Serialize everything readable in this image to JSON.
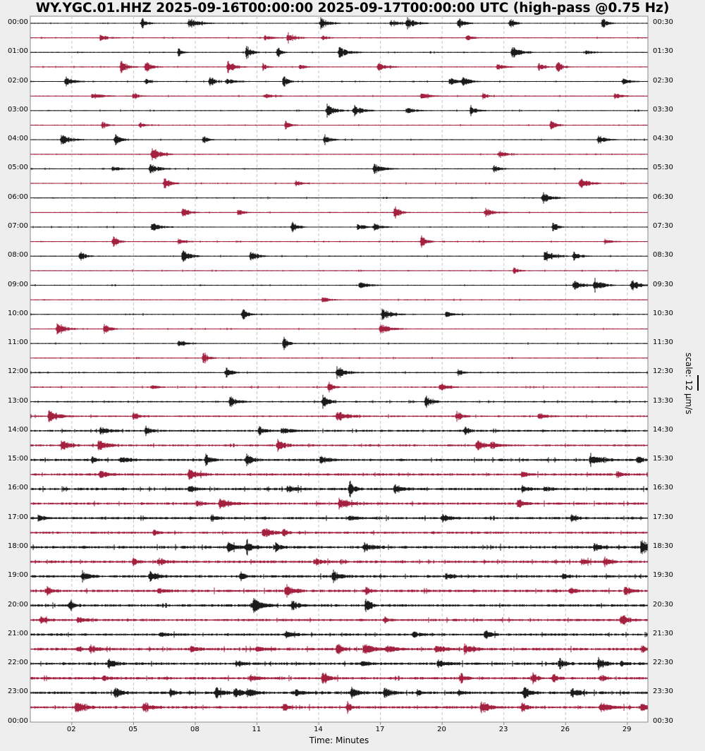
{
  "chart_data": {
    "type": "helicorder",
    "title": "WY.YGC.01.HHZ 2025-09-16T00:00:00 2025-09-17T00:00:00 UTC (high-pass @0.75 Hz)",
    "xlabel": "Time: Minutes",
    "xlim": [
      0,
      30
    ],
    "xticks": [
      2,
      5,
      8,
      11,
      14,
      17,
      20,
      23,
      26,
      29
    ],
    "xtick_labels": [
      "02",
      "05",
      "08",
      "11",
      "14",
      "17",
      "20",
      "23",
      "26",
      "29"
    ],
    "left_labels": [
      "00:00",
      "01:00",
      "02:00",
      "03:00",
      "04:00",
      "05:00",
      "06:00",
      "07:00",
      "08:00",
      "09:00",
      "10:00",
      "11:00",
      "12:00",
      "13:00",
      "14:00",
      "15:00",
      "16:00",
      "17:00",
      "18:00",
      "19:00",
      "20:00",
      "21:00",
      "22:00",
      "23:00"
    ],
    "left_bottom_label": "00:00",
    "right_labels": [
      "00:30",
      "01:30",
      "02:30",
      "03:30",
      "04:30",
      "05:30",
      "06:30",
      "07:30",
      "08:30",
      "09:30",
      "10:30",
      "11:30",
      "12:30",
      "13:30",
      "14:30",
      "15:30",
      "16:30",
      "17:30",
      "18:30",
      "19:30",
      "20:30",
      "21:30",
      "22:30",
      "23:30"
    ],
    "right_bottom_label": "00:30",
    "scale_label": "scale: 12 µm/s",
    "grid": "vertical-dashed",
    "colors": {
      "even_rows": "#1a1a1a",
      "odd_rows": "#a3213f",
      "background": "#eeeeee",
      "plot_bg": "#ffffff"
    },
    "trace_count": 48,
    "noise_levels": [
      0.6,
      0.6,
      0.6,
      0.6,
      0.6,
      0.6,
      0.6,
      0.6,
      0.6,
      0.6,
      0.6,
      0.6,
      0.6,
      0.6,
      0.6,
      0.6,
      0.6,
      0.6,
      0.6,
      0.6,
      0.6,
      0.6,
      0.6,
      0.6,
      0.8,
      0.8,
      0.9,
      1.0,
      1.2,
      1.2,
      1.4,
      1.4,
      1.5,
      1.4,
      1.4,
      1.3,
      1.6,
      1.5,
      1.5,
      1.5,
      1.5,
      1.4,
      1.4,
      1.6,
      1.5,
      1.5,
      1.6,
      1.5
    ],
    "events_minutes": [
      [
        5.4,
        7.7,
        14.1,
        17.5,
        18.3,
        20.8,
        23.3,
        27.8
      ],
      [
        3.4,
        11.4,
        12.5,
        14.2,
        21.2
      ],
      [
        7.2,
        10.5,
        12.0,
        15.0,
        23.4,
        27.0
      ],
      [
        4.4,
        5.6,
        9.6,
        11.3,
        13.1,
        16.9,
        22.7,
        24.7,
        25.6
      ],
      [
        1.7,
        5.6,
        8.7,
        9.5,
        12.3,
        20.4,
        21.0,
        28.8
      ],
      [
        3.0,
        5.0,
        11.4,
        19.0,
        22.0,
        28.4
      ],
      [
        14.4,
        15.7,
        18.3,
        21.4
      ],
      [
        3.5,
        5.3,
        12.4,
        25.3
      ],
      [
        1.5,
        4.1,
        8.4,
        14.3,
        27.6
      ],
      [
        5.9,
        22.8
      ],
      [
        4.0,
        5.8,
        16.7,
        22.5
      ],
      [
        6.5,
        12.9,
        26.7
      ],
      [
        24.9
      ],
      [
        7.4,
        10.1,
        17.7,
        22.1
      ],
      [
        5.9,
        12.7,
        15.9,
        16.7,
        25.4
      ],
      [
        4.0,
        7.2,
        19.0,
        27.9
      ],
      [
        2.4,
        7.4,
        10.7,
        25.0,
        26.4
      ],
      [
        23.5
      ],
      [
        16.0,
        26.4,
        27.4,
        29.2
      ],
      [
        14.2
      ],
      [
        10.3,
        17.1,
        20.2
      ],
      [
        1.3,
        3.6,
        17.0
      ],
      [
        7.2,
        12.3
      ],
      [
        8.4
      ],
      [
        9.5,
        14.9,
        20.8
      ],
      [
        5.9,
        14.5,
        19.9
      ],
      [
        9.7,
        14.2,
        19.2
      ],
      [
        0.9,
        5.0,
        14.9,
        20.7,
        24.7
      ],
      [
        3.4,
        5.6,
        11.1,
        12.2,
        21.1
      ],
      [
        1.5,
        3.3,
        12.0,
        21.7,
        22.4
      ],
      [
        3.0,
        4.4,
        8.5,
        10.5,
        14.1,
        27.2,
        29.5
      ],
      [
        3.4,
        7.7,
        23.9,
        28.5
      ],
      [
        7.7,
        12.5,
        15.5,
        17.7,
        23.9,
        25.0
      ],
      [
        8.1,
        9.2,
        15.0,
        23.7
      ],
      [
        0.4,
        8.8,
        15.5,
        20.0,
        26.3
      ],
      [
        6.0,
        11.3,
        12.3
      ],
      [
        9.6,
        10.5,
        11.9,
        16.2,
        27.4,
        29.7
      ],
      [
        5.0,
        6.2,
        13.8,
        26.8,
        27.9
      ],
      [
        2.5,
        5.8,
        10.2,
        14.7,
        20.2,
        25.9
      ],
      [
        0.8,
        6.2,
        12.4,
        16.3,
        26.2,
        28.9
      ],
      [
        1.9,
        10.8,
        12.7,
        16.3
      ],
      [
        0.5,
        2.3,
        17.2,
        28.7
      ],
      [
        6.3,
        12.4,
        18.6,
        22.1
      ],
      [
        2.3,
        2.9,
        7.8,
        11.0,
        14.9,
        16.2,
        17.3,
        19.7,
        21.1,
        29.7
      ],
      [
        3.8,
        10.0,
        16.1,
        19.8,
        25.7,
        27.6,
        28.7
      ],
      [
        3.5,
        10.7,
        14.2,
        20.9,
        24.4,
        25.4,
        27.7
      ],
      [
        4.1,
        6.8,
        9.0,
        9.9,
        10.6,
        12.9,
        15.6,
        17.2,
        18.8,
        20.8,
        24.0,
        26.3
      ],
      [
        2.2,
        5.5,
        12.3,
        15.4,
        21.9,
        23.9,
        27.7,
        29.7
      ]
    ]
  }
}
